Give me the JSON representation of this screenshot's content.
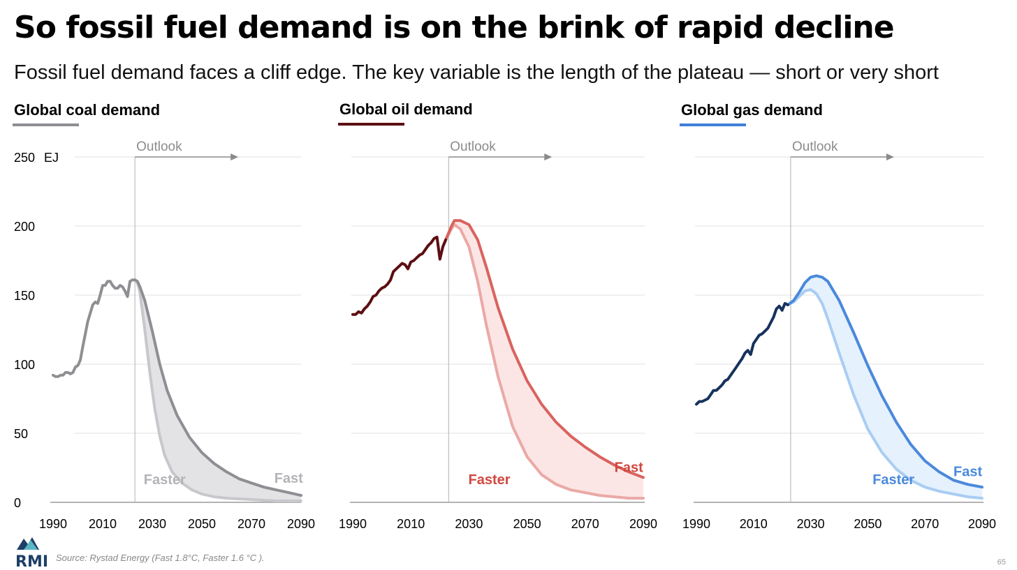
{
  "title": "So fossil fuel demand is on the brink of rapid decline",
  "subtitle": "Fossil fuel demand faces a cliff edge. The key variable is the length of the plateau — short or very short",
  "source": "Source: Rystad Energy (Fast 1.8°C, Faster 1.6 °C ).",
  "page_number": "65",
  "logo_text": "RMI",
  "y_unit": "EJ",
  "outlook_label": "Outlook",
  "chart_data": [
    {
      "type": "area",
      "title": "Global coal demand",
      "accent": "#8e8e93",
      "hist_color": "#8e8e93",
      "fast_color": "#8e8e93",
      "faster_color": "#c7c7cc",
      "fill_color": "#e3e3e6",
      "label_color": "#b3b3b8",
      "ylim": [
        0,
        250
      ],
      "yticks": [
        0,
        50,
        100,
        150,
        200,
        250
      ],
      "xticks": [
        1990,
        2010,
        2030,
        2050,
        2070,
        2090
      ],
      "xlim": [
        1990,
        2090
      ],
      "outlook_start": 2023,
      "historical": [
        [
          1990,
          92
        ],
        [
          1991,
          91
        ],
        [
          1992,
          91
        ],
        [
          1993,
          92
        ],
        [
          1994,
          92
        ],
        [
          1995,
          94
        ],
        [
          1996,
          94
        ],
        [
          1997,
          93
        ],
        [
          1998,
          94
        ],
        [
          1999,
          98
        ],
        [
          2000,
          99
        ],
        [
          2001,
          103
        ],
        [
          2002,
          113
        ],
        [
          2003,
          122
        ],
        [
          2004,
          131
        ],
        [
          2005,
          137
        ],
        [
          2006,
          143
        ],
        [
          2007,
          145
        ],
        [
          2008,
          144
        ],
        [
          2009,
          150
        ],
        [
          2010,
          157
        ],
        [
          2011,
          157
        ],
        [
          2012,
          160
        ],
        [
          2013,
          160
        ],
        [
          2014,
          157
        ],
        [
          2015,
          155
        ],
        [
          2016,
          155
        ],
        [
          2017,
          157
        ],
        [
          2018,
          156
        ],
        [
          2019,
          153
        ],
        [
          2020,
          149
        ],
        [
          2021,
          160
        ],
        [
          2022,
          161
        ],
        [
          2023,
          161
        ]
      ],
      "fast": [
        [
          2023,
          161
        ],
        [
          2024,
          160
        ],
        [
          2025,
          156
        ],
        [
          2027,
          146
        ],
        [
          2030,
          124
        ],
        [
          2033,
          100
        ],
        [
          2036,
          81
        ],
        [
          2040,
          63
        ],
        [
          2045,
          47
        ],
        [
          2050,
          36
        ],
        [
          2055,
          28
        ],
        [
          2060,
          22
        ],
        [
          2065,
          17
        ],
        [
          2070,
          14
        ],
        [
          2075,
          11
        ],
        [
          2080,
          9
        ],
        [
          2085,
          7
        ],
        [
          2090,
          5
        ]
      ],
      "faster": [
        [
          2023,
          161
        ],
        [
          2024,
          159
        ],
        [
          2025,
          152
        ],
        [
          2027,
          125
        ],
        [
          2029,
          94
        ],
        [
          2031,
          68
        ],
        [
          2033,
          48
        ],
        [
          2035,
          34
        ],
        [
          2038,
          22
        ],
        [
          2042,
          14
        ],
        [
          2046,
          9
        ],
        [
          2050,
          6
        ],
        [
          2055,
          4
        ],
        [
          2060,
          3
        ],
        [
          2070,
          2
        ],
        [
          2080,
          1
        ],
        [
          2090,
          1
        ]
      ],
      "fast_label": "Fast",
      "faster_label": "Faster",
      "fast_label_xy": [
        2085,
        12
      ],
      "faster_label_xy": [
        2035,
        5
      ]
    },
    {
      "type": "area",
      "title": "Global oil demand",
      "accent": "#5c0f12",
      "hist_color": "#5c0f12",
      "fast_color": "#d9635f",
      "faster_color": "#eaa9a6",
      "fill_color": "#fbe6e5",
      "label_color": "#d2473f",
      "ylim": [
        0,
        250
      ],
      "yticks": [
        0,
        50,
        100,
        150,
        200,
        250
      ],
      "xticks": [
        1990,
        2010,
        2030,
        2050,
        2070,
        2090
      ],
      "xlim": [
        1990,
        2090
      ],
      "outlook_start": 2023,
      "historical": [
        [
          1990,
          136
        ],
        [
          1991,
          136
        ],
        [
          1992,
          138
        ],
        [
          1993,
          137
        ],
        [
          1994,
          140
        ],
        [
          1995,
          142
        ],
        [
          1996,
          145
        ],
        [
          1997,
          149
        ],
        [
          1998,
          150
        ],
        [
          1999,
          153
        ],
        [
          2000,
          155
        ],
        [
          2001,
          156
        ],
        [
          2002,
          158
        ],
        [
          2003,
          161
        ],
        [
          2004,
          167
        ],
        [
          2005,
          169
        ],
        [
          2006,
          171
        ],
        [
          2007,
          173
        ],
        [
          2008,
          172
        ],
        [
          2009,
          169
        ],
        [
          2010,
          174
        ],
        [
          2011,
          175
        ],
        [
          2012,
          177
        ],
        [
          2013,
          179
        ],
        [
          2014,
          180
        ],
        [
          2015,
          183
        ],
        [
          2016,
          186
        ],
        [
          2017,
          188
        ],
        [
          2018,
          191
        ],
        [
          2019,
          192
        ],
        [
          2020,
          176
        ],
        [
          2021,
          185
        ],
        [
          2022,
          190
        ]
      ],
      "fast": [
        [
          2022,
          190
        ],
        [
          2024,
          200
        ],
        [
          2025,
          204
        ],
        [
          2027,
          204
        ],
        [
          2030,
          201
        ],
        [
          2033,
          190
        ],
        [
          2036,
          170
        ],
        [
          2040,
          141
        ],
        [
          2045,
          111
        ],
        [
          2050,
          88
        ],
        [
          2055,
          71
        ],
        [
          2060,
          58
        ],
        [
          2065,
          48
        ],
        [
          2070,
          40
        ],
        [
          2075,
          33
        ],
        [
          2080,
          27
        ],
        [
          2085,
          22
        ],
        [
          2090,
          18
        ]
      ],
      "faster": [
        [
          2022,
          190
        ],
        [
          2024,
          198
        ],
        [
          2025,
          201
        ],
        [
          2027,
          198
        ],
        [
          2030,
          185
        ],
        [
          2033,
          160
        ],
        [
          2036,
          128
        ],
        [
          2040,
          91
        ],
        [
          2045,
          55
        ],
        [
          2050,
          33
        ],
        [
          2055,
          20
        ],
        [
          2060,
          13
        ],
        [
          2065,
          9
        ],
        [
          2070,
          7
        ],
        [
          2075,
          5
        ],
        [
          2080,
          4
        ],
        [
          2085,
          3
        ],
        [
          2090,
          3
        ]
      ],
      "fast_label": "Fast",
      "faster_label": "Faster",
      "fast_label_xy": [
        2085,
        20
      ],
      "faster_label_xy": [
        2037,
        5
      ]
    },
    {
      "type": "area",
      "title": "Global gas demand",
      "accent": "#3f7fd9",
      "hist_color": "#17325c",
      "fast_color": "#4a89dc",
      "faster_color": "#a9cdf3",
      "fill_color": "#e5f1fc",
      "label_color": "#4a89dc",
      "ylim": [
        0,
        250
      ],
      "yticks": [
        0,
        50,
        100,
        150,
        200,
        250
      ],
      "xticks": [
        1990,
        2010,
        2030,
        2050,
        2070,
        2090
      ],
      "xlim": [
        1990,
        2090
      ],
      "outlook_start": 2023,
      "historical": [
        [
          1990,
          71
        ],
        [
          1991,
          73
        ],
        [
          1992,
          73
        ],
        [
          1993,
          74
        ],
        [
          1994,
          75
        ],
        [
          1995,
          78
        ],
        [
          1996,
          81
        ],
        [
          1997,
          81
        ],
        [
          1998,
          83
        ],
        [
          1999,
          85
        ],
        [
          2000,
          88
        ],
        [
          2001,
          89
        ],
        [
          2002,
          92
        ],
        [
          2003,
          95
        ],
        [
          2004,
          98
        ],
        [
          2005,
          101
        ],
        [
          2006,
          104
        ],
        [
          2007,
          108
        ],
        [
          2008,
          110
        ],
        [
          2009,
          107
        ],
        [
          2010,
          115
        ],
        [
          2011,
          118
        ],
        [
          2012,
          121
        ],
        [
          2013,
          122
        ],
        [
          2014,
          124
        ],
        [
          2015,
          126
        ],
        [
          2016,
          130
        ],
        [
          2017,
          134
        ],
        [
          2018,
          140
        ],
        [
          2019,
          142
        ],
        [
          2020,
          139
        ],
        [
          2021,
          144
        ],
        [
          2022,
          143
        ]
      ],
      "fast": [
        [
          2022,
          143
        ],
        [
          2024,
          146
        ],
        [
          2026,
          152
        ],
        [
          2028,
          159
        ],
        [
          2030,
          163
        ],
        [
          2032,
          164
        ],
        [
          2034,
          163
        ],
        [
          2036,
          160
        ],
        [
          2040,
          146
        ],
        [
          2045,
          123
        ],
        [
          2050,
          99
        ],
        [
          2055,
          77
        ],
        [
          2060,
          58
        ],
        [
          2065,
          42
        ],
        [
          2070,
          30
        ],
        [
          2075,
          22
        ],
        [
          2080,
          16
        ],
        [
          2085,
          13
        ],
        [
          2090,
          11
        ]
      ],
      "faster": [
        [
          2022,
          143
        ],
        [
          2024,
          145
        ],
        [
          2026,
          149
        ],
        [
          2028,
          153
        ],
        [
          2030,
          154
        ],
        [
          2032,
          151
        ],
        [
          2034,
          144
        ],
        [
          2036,
          133
        ],
        [
          2040,
          108
        ],
        [
          2045,
          78
        ],
        [
          2050,
          53
        ],
        [
          2055,
          36
        ],
        [
          2060,
          24
        ],
        [
          2065,
          16
        ],
        [
          2070,
          11
        ],
        [
          2075,
          8
        ],
        [
          2080,
          6
        ],
        [
          2085,
          4
        ],
        [
          2090,
          3
        ]
      ],
      "fast_label": "Fast",
      "faster_label": "Faster",
      "fast_label_xy": [
        2085,
        17
      ],
      "faster_label_xy": [
        2059,
        5
      ]
    }
  ]
}
